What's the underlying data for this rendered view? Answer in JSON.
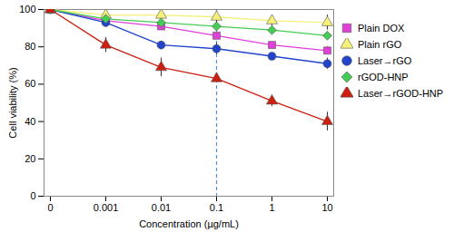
{
  "chart_data": {
    "type": "line",
    "x_label": "Concentration (µg/mL)",
    "y_label": "Cell viability (%)",
    "categories": [
      "0",
      "0.001",
      "0.01",
      "0.1",
      "1",
      "10"
    ],
    "ylim": [
      0,
      100
    ],
    "yticks": [
      0,
      20,
      40,
      60,
      80,
      100
    ],
    "vline": "0.1",
    "legend": "right",
    "series": [
      {
        "name": "Plain DOX",
        "color": "#e040d8",
        "marker": "square",
        "values": [
          100,
          94,
          91,
          86,
          81,
          78
        ],
        "errors": [
          1,
          1.5,
          1.5,
          1.5,
          1.5,
          2
        ]
      },
      {
        "name": "Plain rGO",
        "color": "#f5f07a",
        "marker": "triangle",
        "values": [
          100,
          97,
          97,
          96,
          94,
          93
        ],
        "errors": [
          1,
          2,
          2,
          3,
          3,
          4
        ]
      },
      {
        "name": "Laser→rGO",
        "color": "#2244cc",
        "marker": "circle",
        "values": [
          100,
          93,
          81,
          79,
          75,
          71
        ],
        "errors": [
          1,
          1.5,
          2,
          3,
          1.5,
          3
        ]
      },
      {
        "name": "rGOD-HNP",
        "color": "#44cc55",
        "marker": "diamond",
        "values": [
          100,
          95,
          93,
          91,
          89,
          86
        ],
        "errors": [
          1,
          1.5,
          1.5,
          1.5,
          1.5,
          2
        ]
      },
      {
        "name": "Laser→rGOD-HNP",
        "color": "#cc1f10",
        "marker": "triangle",
        "values": [
          100,
          81,
          69,
          63,
          51,
          40
        ],
        "errors": [
          1,
          4,
          5,
          2,
          3,
          5
        ]
      }
    ]
  }
}
